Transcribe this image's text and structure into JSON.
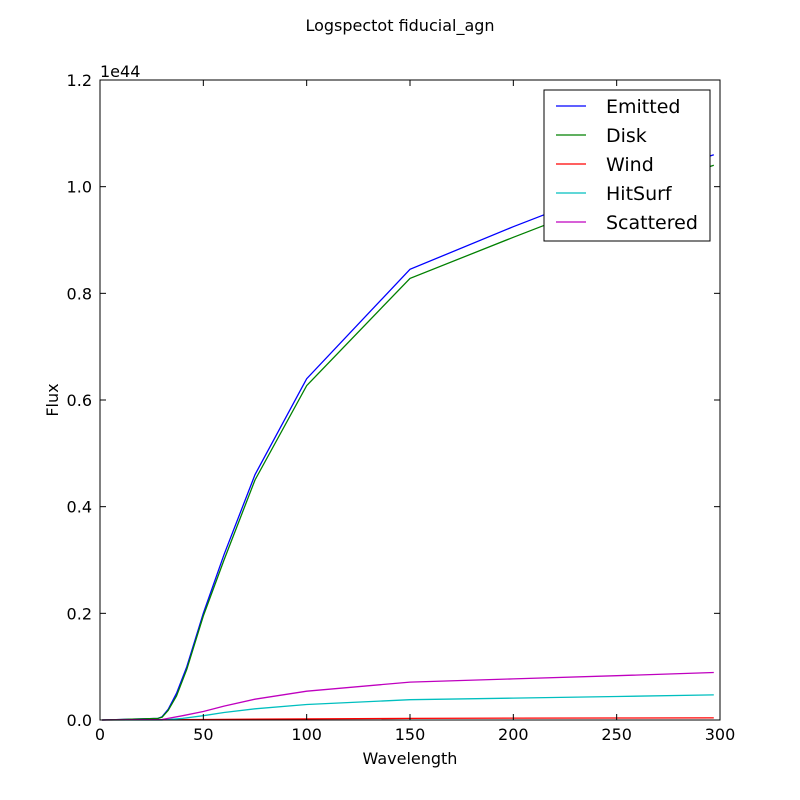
{
  "chart_data": {
    "type": "line",
    "title": "Logspectot fiducial_agn",
    "xlabel": "Wavelength",
    "ylabel": "Flux",
    "xlim": [
      0,
      300
    ],
    "ylim": [
      0,
      1.2
    ],
    "y_scale_label": "1e44",
    "x_ticks": [
      0,
      50,
      100,
      150,
      200,
      250,
      300
    ],
    "x_tick_labels": [
      "0",
      "50",
      "100",
      "150",
      "200",
      "250",
      "300"
    ],
    "y_ticks": [
      0.0,
      0.2,
      0.4,
      0.6,
      0.8,
      1.0,
      1.2
    ],
    "y_tick_labels": [
      "0.0",
      "0.2",
      "0.4",
      "0.6",
      "0.8",
      "1.0",
      "1.2"
    ],
    "grid": false,
    "legend_position": "top-right",
    "series": [
      {
        "name": "Emitted",
        "color": "#0000ff",
        "points": [
          [
            1,
            0.0
          ],
          [
            10,
            0.001
          ],
          [
            20,
            0.002
          ],
          [
            28,
            0.003
          ],
          [
            30,
            0.006
          ],
          [
            33,
            0.02
          ],
          [
            37,
            0.05
          ],
          [
            42,
            0.1
          ],
          [
            50,
            0.2
          ],
          [
            60,
            0.31
          ],
          [
            75,
            0.46
          ],
          [
            100,
            0.64
          ],
          [
            150,
            0.845
          ],
          [
            200,
            0.925
          ],
          [
            250,
            1.0
          ],
          [
            297,
            1.06
          ]
        ]
      },
      {
        "name": "Disk",
        "color": "#008000",
        "points": [
          [
            1,
            0.0
          ],
          [
            10,
            0.001
          ],
          [
            20,
            0.002
          ],
          [
            28,
            0.003
          ],
          [
            30,
            0.005
          ],
          [
            33,
            0.018
          ],
          [
            37,
            0.045
          ],
          [
            42,
            0.095
          ],
          [
            50,
            0.195
          ],
          [
            60,
            0.3
          ],
          [
            75,
            0.45
          ],
          [
            100,
            0.627
          ],
          [
            150,
            0.828
          ],
          [
            200,
            0.905
          ],
          [
            250,
            0.98
          ],
          [
            297,
            1.04
          ]
        ]
      },
      {
        "name": "Wind",
        "color": "#ff0000",
        "points": [
          [
            1,
            0.0
          ],
          [
            30,
            0.0005
          ],
          [
            50,
            0.001
          ],
          [
            100,
            0.002
          ],
          [
            150,
            0.003
          ],
          [
            200,
            0.0035
          ],
          [
            250,
            0.0038
          ],
          [
            297,
            0.004
          ]
        ]
      },
      {
        "name": "HitSurf",
        "color": "#00bfbf",
        "points": [
          [
            1,
            0.0
          ],
          [
            30,
            0.0
          ],
          [
            40,
            0.003
          ],
          [
            50,
            0.008
          ],
          [
            60,
            0.014
          ],
          [
            75,
            0.021
          ],
          [
            100,
            0.029
          ],
          [
            150,
            0.038
          ],
          [
            200,
            0.041
          ],
          [
            250,
            0.044
          ],
          [
            297,
            0.047
          ]
        ]
      },
      {
        "name": "Scattered",
        "color": "#bf00bf",
        "points": [
          [
            1,
            0.0
          ],
          [
            30,
            0.001
          ],
          [
            40,
            0.008
          ],
          [
            50,
            0.016
          ],
          [
            60,
            0.026
          ],
          [
            75,
            0.039
          ],
          [
            100,
            0.054
          ],
          [
            150,
            0.071
          ],
          [
            200,
            0.077
          ],
          [
            250,
            0.083
          ],
          [
            297,
            0.089
          ]
        ]
      }
    ]
  }
}
